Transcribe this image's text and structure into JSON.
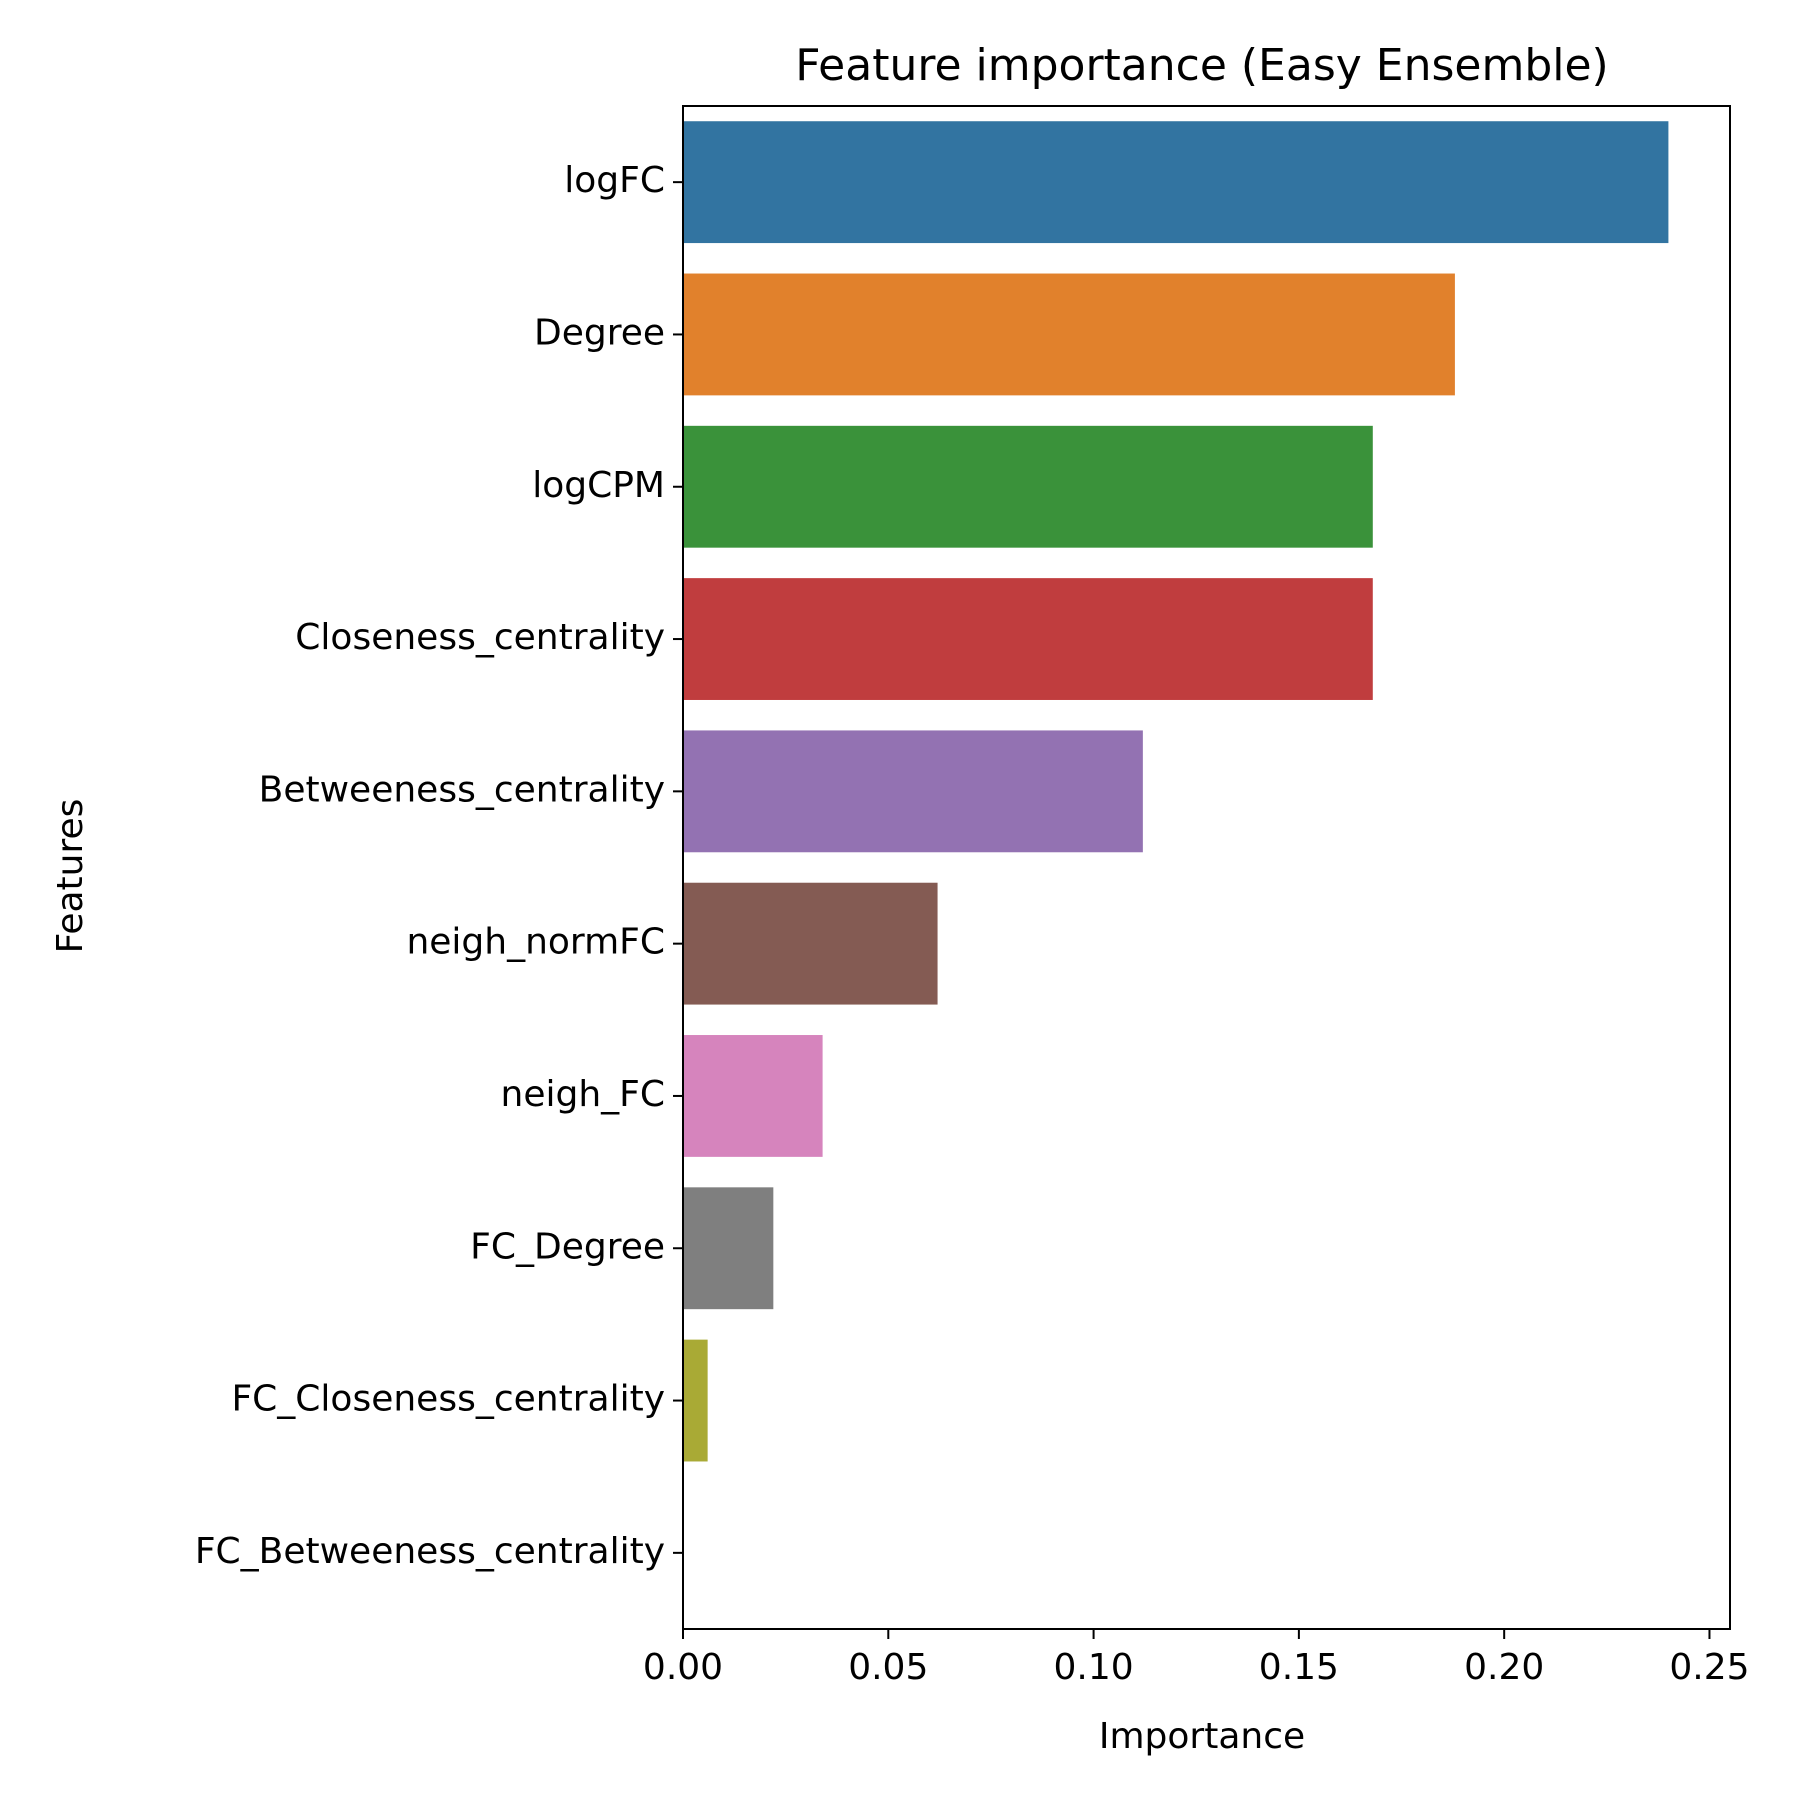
{
  "chart_data": {
    "type": "bar",
    "orientation": "horizontal",
    "title": "Feature importance (Easy Ensemble)",
    "xlabel": "Importance",
    "ylabel": "Features",
    "xlim": [
      0,
      0.255
    ],
    "xticks": [
      "0.00",
      "0.05",
      "0.10",
      "0.15",
      "0.20",
      "0.25"
    ],
    "xtick_values": [
      0,
      0.05,
      0.1,
      0.15,
      0.2,
      0.25
    ],
    "grid": false,
    "legend": "none",
    "categories": [
      "logFC",
      "Degree",
      "logCPM",
      "Closeness_centrality",
      "Betweeness_centrality",
      "neigh_normFC",
      "neigh_FC",
      "FC_Degree",
      "FC_Closeness_centrality",
      "FC_Betweeness_centrality"
    ],
    "values": [
      0.24,
      0.188,
      0.168,
      0.168,
      0.112,
      0.062,
      0.034,
      0.022,
      0.006,
      0.0
    ],
    "colors": [
      "#3274a1",
      "#e1812c",
      "#3a923a",
      "#c03d3e",
      "#9372b2",
      "#845b53",
      "#d684bd",
      "#7f7f7f",
      "#a9aa35",
      "#2fbccd"
    ]
  }
}
